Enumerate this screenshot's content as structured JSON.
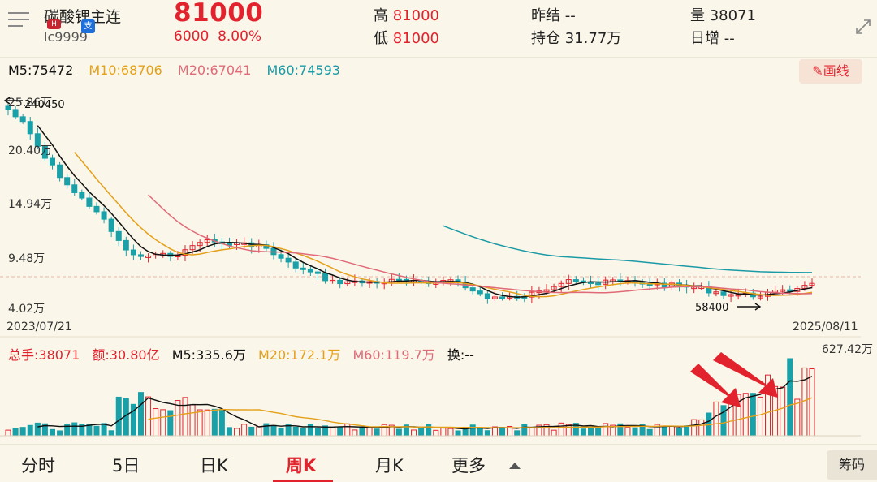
{
  "header": {
    "name": "碳酸锂主连",
    "code": "lc9999",
    "badges": [
      "H",
      "支"
    ],
    "price": "81000",
    "change": "6000",
    "change_pct": "8.00%",
    "high_label": "高",
    "high_value": "81000",
    "low_label": "低",
    "low_value": "81000",
    "prev_settle_label": "昨结",
    "prev_settle_value": "--",
    "open_interest_label": "持仓",
    "open_interest_value": "31.77万",
    "volume_label": "量",
    "volume_value": "38071",
    "daily_incr_label": "日增",
    "daily_incr_value": "--"
  },
  "ma": {
    "m5": "M5:75472",
    "m10": "M10:68706",
    "m20": "M20:67041",
    "m60": "M60:74593",
    "draw_button": "画线"
  },
  "price_axis": {
    "labels": [
      "25.86万",
      "20.40万",
      "14.94万",
      "9.48万",
      "4.02万"
    ],
    "high_mark": "240450",
    "low_mark": "58400",
    "start_date": "2023/07/21",
    "end_date": "2025/08/11"
  },
  "volume": {
    "total": "总手:38071",
    "amount": "额:30.80亿",
    "m5": "M5:335.6万",
    "m20": "M20:172.1万",
    "m60": "M60:119.7万",
    "turnover": "换:--",
    "max_label": "627.42万"
  },
  "tabs": [
    {
      "label": "分时",
      "active": false
    },
    {
      "label": "5日",
      "active": false
    },
    {
      "label": "日K",
      "active": false
    },
    {
      "label": "周K",
      "active": true
    },
    {
      "label": "月K",
      "active": false
    },
    {
      "label": "更多",
      "active": false
    }
  ],
  "chip_button": "筹码",
  "colors": {
    "up": "#e2232e",
    "down": "#19a0a8",
    "m5": "#111111",
    "m10": "#e5a01a",
    "m20": "#e06a78",
    "m60": "#1a9aa6"
  }
}
